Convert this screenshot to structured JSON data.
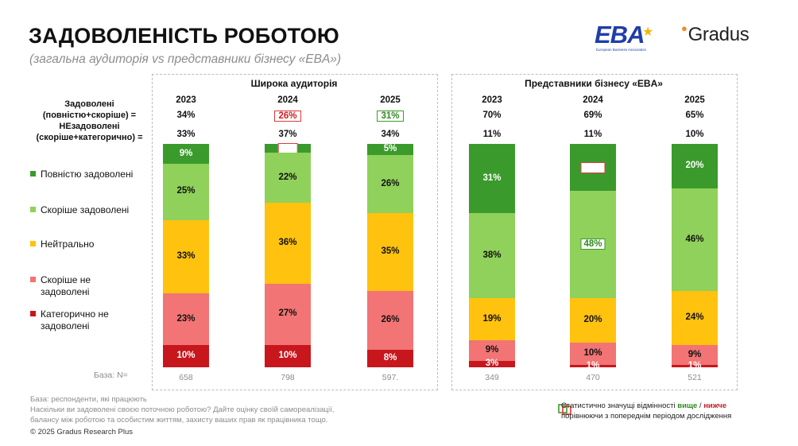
{
  "header": {
    "title": "ЗАДОВОЛЕНІСТЬ РОБОТОЮ",
    "subtitle": "(загальна аудиторія vs представники бізнесу «EBA»)"
  },
  "logos": {
    "eba_text": "EBA",
    "eba_sub": "European Business Association",
    "gradus_text": "Gradus"
  },
  "row_labels": {
    "satisfied": "Задоволені (повністю+скоріше) =",
    "dissatisfied": "НЕзадоволені (скоріше+категорично) ="
  },
  "legend": [
    {
      "label": "Повністю задоволені",
      "color": "#3a9a2c"
    },
    {
      "label": "Скоріше задоволені",
      "color": "#8fd15a"
    },
    {
      "label": "Нейтрально",
      "color": "#ffc20e"
    },
    {
      "label": "Скоріше не задоволені",
      "color": "#f27474"
    },
    {
      "label": "Категорично не задоволені",
      "color": "#c8161d"
    }
  ],
  "base_label": "База: N=",
  "chart_data": [
    {
      "type": "bar",
      "stacked": true,
      "title": "Широка аудиторія",
      "categories": [
        "2023",
        "2024",
        "2025"
      ],
      "satisfied": [
        "34%",
        "26%",
        "31%"
      ],
      "satisfied_flags": [
        "",
        "lower",
        "higher"
      ],
      "dissatisfied": [
        "33%",
        "37%",
        "34%"
      ],
      "base_n": [
        "658",
        "798",
        "597."
      ],
      "series": [
        {
          "name": "Повністю задоволені",
          "values": [
            9,
            4,
            5
          ],
          "flags": [
            "",
            "lower",
            ""
          ]
        },
        {
          "name": "Скоріше задоволені",
          "values": [
            25,
            22,
            26
          ],
          "flags": [
            "",
            "",
            ""
          ]
        },
        {
          "name": "Нейтрально",
          "values": [
            33,
            36,
            35
          ],
          "flags": [
            "",
            "",
            ""
          ]
        },
        {
          "name": "Скоріше не задоволені",
          "values": [
            23,
            27,
            26
          ],
          "flags": [
            "",
            "",
            ""
          ]
        },
        {
          "name": "Категорично не задоволені",
          "values": [
            10,
            10,
            8
          ],
          "flags": [
            "",
            "",
            ""
          ]
        }
      ]
    },
    {
      "type": "bar",
      "stacked": true,
      "title": "Представники бізнесу «EBA»",
      "categories": [
        "2023",
        "2024",
        "2025"
      ],
      "satisfied": [
        "70%",
        "69%",
        "65%"
      ],
      "satisfied_flags": [
        "",
        "",
        ""
      ],
      "dissatisfied": [
        "11%",
        "11%",
        "10%"
      ],
      "base_n": [
        "349",
        "470",
        "521"
      ],
      "series": [
        {
          "name": "Повністю задоволені",
          "values": [
            31,
            21,
            20
          ],
          "flags": [
            "",
            "lower",
            ""
          ]
        },
        {
          "name": "Скоріше задоволені",
          "values": [
            38,
            48,
            46
          ],
          "flags": [
            "",
            "higher",
            ""
          ]
        },
        {
          "name": "Нейтрально",
          "values": [
            19,
            20,
            24
          ],
          "flags": [
            "",
            "",
            ""
          ]
        },
        {
          "name": "Скоріше не задоволені",
          "values": [
            9,
            10,
            9
          ],
          "flags": [
            "",
            "",
            ""
          ]
        },
        {
          "name": "Категорично не задоволені",
          "values": [
            3,
            1,
            1
          ],
          "flags": [
            "",
            "",
            ""
          ]
        }
      ]
    }
  ],
  "footnotes": {
    "line1": "База: респонденти, які працюють",
    "line2": "Наскільки ви задоволені своєю поточною роботою? Дайте оцінку своїй самореалізації,",
    "line3": "балансу між роботою та особистим життям, захисту ваших прав як працівника тощо.",
    "copyright": "© 2025 Gradus Research Plus"
  },
  "sig_legend": {
    "text1": "Статистично значущі відмінності",
    "higher": "вище",
    "sep": "/",
    "lower": "нижче",
    "text2": "порівнюючи з попереднім періодом дослідження"
  }
}
